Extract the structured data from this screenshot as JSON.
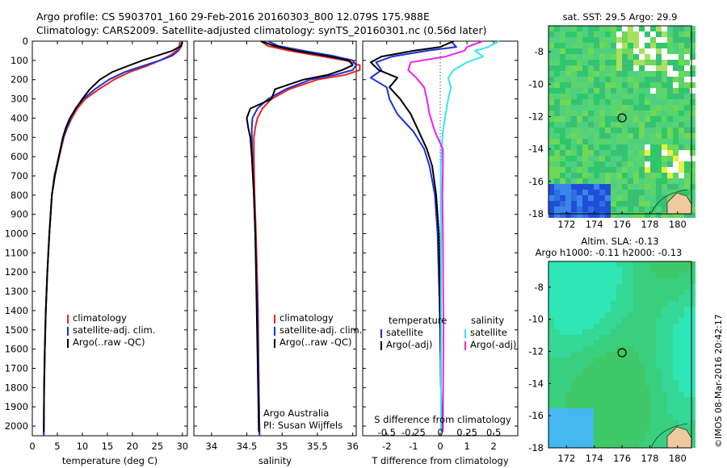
{
  "header": {
    "line1": "Argo profile: CS 5903701_160 29-Feb-2016 20160303_800 12.079S 175.988E",
    "line2": "Climatology: CARS2009. Satellite-adjusted climatology: synTS_20160301.nc (0.56d later)"
  },
  "side_stamp": "©IMOS 08-Mar-2016 20:42:17",
  "colors": {
    "clim": "#e8251f",
    "sat": "#1c2fd6",
    "argo": "#000000",
    "sal_sat": "#33e6f0",
    "sal_argo": "#ee22ee"
  },
  "chart_data": [
    {
      "type": "line",
      "id": "temperature",
      "xlabel": "temperature (deg C)",
      "xlim": [
        0,
        31
      ],
      "ylim": [
        2050,
        0
      ],
      "xticks": [
        "0",
        "5",
        "10",
        "15",
        "20",
        "25",
        "30"
      ],
      "yticks": [
        "0",
        "100",
        "200",
        "300",
        "400",
        "500",
        "600",
        "700",
        "800",
        "900",
        "1000",
        "1100",
        "1200",
        "1300",
        "1400",
        "1500",
        "1600",
        "1700",
        "1800",
        "1900",
        "2000"
      ],
      "legend": [
        "climatology",
        "satellite-adj. clim.",
        "Argo(..raw -QC)"
      ],
      "series": [
        {
          "name": "climatology",
          "color": "clim",
          "x": [
            29.5,
            29.4,
            28.8,
            27.5,
            25.5,
            22.8,
            19.5,
            16.3,
            13.3,
            10.6,
            9.0,
            7.9,
            7.0,
            6.3,
            5.4,
            4.5,
            3.9,
            3.4,
            3.0,
            2.7,
            2.5,
            2.35,
            2.3
          ],
          "y": [
            0,
            25,
            50,
            75,
            100,
            130,
            160,
            200,
            250,
            300,
            350,
            400,
            450,
            500,
            600,
            700,
            800,
            1000,
            1200,
            1400,
            1600,
            1800,
            2050
          ]
        },
        {
          "name": "satellite-adj. clim.",
          "color": "sat",
          "x": [
            29.9,
            29.8,
            29.2,
            28.0,
            25.5,
            22.0,
            18.5,
            15.3,
            12.5,
            10.2,
            8.6,
            7.7,
            6.9,
            6.2,
            5.3,
            4.4,
            3.9,
            3.4,
            3.0,
            2.7,
            2.5,
            2.35,
            2.3
          ],
          "y": [
            0,
            25,
            50,
            75,
            100,
            130,
            160,
            200,
            250,
            300,
            350,
            400,
            450,
            500,
            600,
            700,
            800,
            1000,
            1200,
            1400,
            1600,
            1800,
            2050
          ]
        },
        {
          "name": "Argo(..raw -QC)",
          "color": "argo",
          "x": [
            30.0,
            29.7,
            28.0,
            25.0,
            22.0,
            19.0,
            16.0,
            13.5,
            11.5,
            10.0,
            8.7,
            7.5,
            6.7,
            6.1,
            5.3,
            4.5,
            3.9,
            3.4,
            3.0,
            2.7,
            2.5,
            2.35,
            2.3
          ],
          "y": [
            5,
            25,
            50,
            75,
            100,
            130,
            160,
            200,
            250,
            300,
            350,
            400,
            450,
            500,
            600,
            700,
            800,
            1000,
            1200,
            1400,
            1600,
            1800,
            2030
          ]
        }
      ]
    },
    {
      "type": "line",
      "id": "salinity",
      "xlabel": "salinity",
      "xlim": [
        33.75,
        36.05
      ],
      "ylim": [
        2050,
        0
      ],
      "xticks": [
        "34",
        "34.5",
        "35",
        "35.5",
        "36"
      ],
      "legend": [
        "climatology",
        "satellite-adj. clim.",
        "Argo(..raw -QC)"
      ],
      "annotation": [
        "Argo Australia",
        "PI: Susan Wijffels"
      ],
      "series": [
        {
          "name": "climatology",
          "color": "clim",
          "x": [
            34.7,
            34.8,
            35.1,
            35.5,
            35.9,
            36.1,
            36.1,
            35.9,
            35.5,
            35.1,
            34.85,
            34.72,
            34.65,
            34.62,
            34.6,
            34.6,
            34.61,
            34.63,
            34.66,
            34.67,
            34.68
          ],
          "y": [
            0,
            25,
            50,
            75,
            100,
            125,
            150,
            175,
            200,
            250,
            300,
            350,
            400,
            450,
            500,
            600,
            800,
            1000,
            1400,
            1800,
            2050
          ]
        },
        {
          "name": "satellite-adj. clim.",
          "color": "sat",
          "x": [
            34.8,
            34.95,
            35.3,
            35.7,
            36.0,
            36.05,
            36.0,
            35.75,
            35.4,
            35.05,
            34.8,
            34.65,
            34.58,
            34.57,
            34.57,
            34.58,
            34.6,
            34.62,
            34.65,
            34.67,
            34.68
          ],
          "y": [
            0,
            25,
            50,
            75,
            100,
            125,
            150,
            175,
            200,
            250,
            300,
            350,
            400,
            450,
            500,
            600,
            800,
            1000,
            1400,
            1800,
            2050
          ]
        },
        {
          "name": "Argo(..raw -QC)",
          "color": "argo",
          "x": [
            34.7,
            34.9,
            35.2,
            35.6,
            35.95,
            36.0,
            35.85,
            35.65,
            35.3,
            34.9,
            34.85,
            34.55,
            34.5,
            34.52,
            34.55,
            34.57,
            34.6,
            34.62,
            34.64,
            34.66,
            34.67
          ],
          "y": [
            0,
            25,
            50,
            75,
            100,
            125,
            150,
            175,
            200,
            250,
            300,
            350,
            400,
            450,
            500,
            600,
            800,
            1000,
            1400,
            1800,
            2030
          ]
        }
      ]
    },
    {
      "type": "line",
      "id": "difference",
      "xlabel": "T difference from climatology",
      "xlabel_top": "S difference from climatology",
      "xlim": [
        -2.9,
        2.9
      ],
      "ylim": [
        2050,
        0
      ],
      "xticks": [
        "-2",
        "-1",
        "0",
        "1",
        "2"
      ],
      "sticks": [
        "-0.5",
        "-0.25",
        "0",
        "0.25",
        "0.5"
      ],
      "legend_left": [
        "temperature",
        "satellite",
        "Argo(-adj)"
      ],
      "legend_right": [
        "salinity",
        "satellite",
        "Argo(-adj)"
      ],
      "series": [
        {
          "name": "temperature satellite",
          "color": "sat",
          "x": [
            0.4,
            0.6,
            -0.5,
            -1.8,
            -2.4,
            -2.2,
            -2.6,
            -2.0,
            -1.9,
            -1.6,
            -1.0,
            -0.6,
            -0.4,
            -0.2,
            -0.1,
            0,
            0.05
          ],
          "y": [
            0,
            30,
            50,
            80,
            110,
            150,
            190,
            240,
            300,
            380,
            470,
            560,
            650,
            800,
            1000,
            1500,
            2030
          ]
        },
        {
          "name": "temperature Argo(-adj)",
          "color": "argo",
          "x": [
            0.5,
            0.0,
            -1.0,
            -2.2,
            -2.6,
            -2.3,
            -1.6,
            -1.9,
            -1.5,
            -1.1,
            -0.8,
            -0.5,
            -0.3,
            -0.15,
            -0.05,
            0,
            0.05
          ],
          "y": [
            0,
            30,
            50,
            80,
            110,
            150,
            190,
            240,
            300,
            380,
            470,
            560,
            650,
            800,
            1000,
            1500,
            2030
          ]
        },
        {
          "name": "salinity satellite",
          "color": "sal_sat",
          "x": [
            2.2,
            1.8,
            1.3,
            1.6,
            1.0,
            0.5,
            0.3,
            0.4,
            0.3,
            0.2,
            0.1,
            0.05,
            0.02,
            0.02,
            0.03,
            0.03,
            0.03
          ],
          "y": [
            0,
            30,
            50,
            80,
            110,
            150,
            190,
            240,
            300,
            380,
            470,
            560,
            650,
            800,
            1000,
            1500,
            2030
          ]
        },
        {
          "name": "salinity Argo(-adj)",
          "color": "sal_argo",
          "x": [
            1.6,
            1.0,
            0.9,
            0.2,
            -1.1,
            -1.2,
            -0.9,
            -0.6,
            -0.5,
            -0.4,
            -0.2,
            0.1,
            0.1,
            0.08,
            0.1,
            0.12,
            0.1
          ],
          "y": [
            0,
            30,
            50,
            80,
            110,
            150,
            190,
            240,
            300,
            380,
            470,
            560,
            650,
            800,
            1000,
            1500,
            2030
          ]
        }
      ]
    },
    {
      "type": "heatmap",
      "id": "sst_map",
      "title": "sat. SST: 29.5 Argo: 29.9",
      "xticks": [
        "172",
        "174",
        "176",
        "178",
        "180"
      ],
      "yticks": [
        "-8",
        "-10",
        "-12",
        "-14",
        "-16",
        "-18"
      ],
      "xlim": [
        170.7,
        181.0
      ],
      "ylim": [
        -18,
        -6.4
      ],
      "marker": {
        "lon": 176,
        "lat": -12.08
      }
    },
    {
      "type": "heatmap",
      "id": "sla_map",
      "title": "Altim. SLA: -0.13",
      "subtitle": "Argo h1000: -0.11 h2000: -0.13",
      "xticks": [
        "172",
        "174",
        "176",
        "178",
        "180"
      ],
      "yticks": [
        "-8",
        "-10",
        "-12",
        "-14",
        "-16",
        "-18"
      ],
      "xlim": [
        170.7,
        181.0
      ],
      "ylim": [
        -18,
        -6.4
      ],
      "marker": {
        "lon": 176,
        "lat": -12.08
      }
    }
  ]
}
